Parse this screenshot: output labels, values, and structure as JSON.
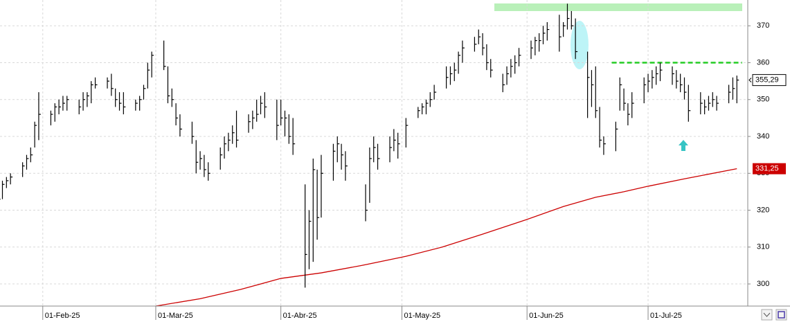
{
  "chart_data": {
    "type": "ohlc",
    "color": "#000000",
    "xlim": [
      0.4,
      185.7
    ],
    "ylim": [
      294,
      377
    ],
    "xticks": [
      {
        "value": 11,
        "label": "01-Feb-25"
      },
      {
        "value": 39,
        "label": "01-Mar-25"
      },
      {
        "value": 70,
        "label": "01-Abr-25"
      },
      {
        "value": 100,
        "label": "01-May-25"
      },
      {
        "value": 131,
        "label": "01-Jun-25"
      },
      {
        "value": 161,
        "label": "01-Jul-25"
      }
    ],
    "yticks": [
      300,
      310,
      320,
      330,
      340,
      350,
      360,
      370
    ],
    "grid": true,
    "x": [
      0,
      1,
      2,
      3,
      6,
      7,
      8,
      9,
      10,
      13,
      14,
      15,
      16,
      17,
      20,
      21,
      22,
      23,
      24,
      27,
      28,
      29,
      30,
      31,
      34,
      35,
      36,
      37,
      38,
      41,
      42,
      43,
      44,
      45,
      48,
      49,
      50,
      51,
      52,
      55,
      56,
      57,
      58,
      59,
      62,
      63,
      64,
      65,
      66,
      69,
      70,
      71,
      72,
      73,
      76,
      77,
      78,
      79,
      80,
      83,
      84,
      85,
      86,
      91,
      92,
      93,
      94,
      97,
      98,
      99,
      101,
      104,
      105,
      106,
      107,
      108,
      111,
      112,
      113,
      114,
      115,
      118,
      119,
      120,
      121,
      122,
      125,
      126,
      127,
      128,
      129,
      132,
      133,
      134,
      135,
      136,
      139,
      140,
      141,
      142,
      143,
      146,
      147,
      148,
      149,
      150,
      153,
      154,
      155,
      156,
      157,
      160,
      161,
      162,
      163,
      164,
      167,
      168,
      169,
      170,
      171,
      174,
      175,
      176,
      177,
      178,
      181,
      182,
      183
    ],
    "high": [
      325,
      328,
      329,
      330,
      333,
      335,
      337,
      344,
      352,
      347,
      349,
      350,
      351,
      351,
      350,
      352,
      352,
      355,
      356,
      356,
      357,
      353,
      352,
      352,
      350,
      351,
      354,
      360,
      363,
      366,
      359,
      353,
      349,
      346,
      344,
      339,
      336,
      335,
      333,
      337,
      340,
      341,
      343,
      347,
      346,
      347,
      350,
      351,
      352,
      350,
      350,
      347,
      346,
      345,
      327,
      320,
      334,
      331,
      335,
      338,
      340,
      338,
      336,
      327,
      337,
      340,
      338,
      340,
      342,
      341,
      345,
      348,
      349,
      350,
      352,
      354,
      359,
      359,
      360,
      363,
      366,
      367,
      369,
      368,
      365,
      361,
      357,
      359,
      361,
      362,
      364,
      366,
      367,
      368,
      370,
      371,
      373,
      371,
      376,
      374,
      372,
      363,
      358,
      359,
      348,
      340,
      344,
      356,
      353,
      349,
      352,
      356,
      357,
      358,
      359,
      360,
      359,
      358,
      357,
      356,
      354,
      352,
      350,
      351,
      352,
      351,
      354,
      356,
      356.5
    ],
    "low": [
      322,
      323,
      326,
      327,
      329,
      331,
      333,
      337,
      339,
      343,
      344,
      346,
      347,
      347,
      346,
      347,
      348,
      349,
      353,
      353,
      351,
      348,
      347,
      346,
      347,
      347,
      350,
      353,
      356,
      358,
      349,
      348,
      343,
      340,
      338,
      330,
      331,
      329,
      328,
      331,
      334,
      336,
      338,
      337,
      341,
      342,
      344,
      346,
      345,
      339,
      343,
      340,
      338,
      335,
      299,
      304,
      306,
      312,
      318,
      328,
      333,
      331,
      328,
      317,
      322,
      333,
      331,
      333,
      336,
      334,
      337,
      345,
      346,
      346,
      348,
      350,
      353,
      354,
      355,
      357,
      360,
      363,
      365,
      362,
      358,
      356,
      352,
      354,
      356,
      357,
      359,
      361,
      362,
      363,
      365,
      366,
      363,
      367,
      369,
      369,
      361,
      345,
      348,
      345,
      337,
      335,
      336,
      347,
      347,
      343,
      345,
      349,
      352,
      353,
      354,
      355,
      354,
      353,
      352,
      350,
      344,
      346,
      346,
      347,
      348,
      347,
      349,
      350,
      349
    ],
    "close": [
      323,
      327,
      328,
      329,
      332,
      334,
      335,
      343,
      346,
      346,
      348,
      348,
      349,
      350,
      348,
      350,
      351,
      354,
      354,
      355,
      353,
      350,
      349,
      348,
      349,
      350,
      353,
      358,
      362,
      359,
      351,
      350,
      345,
      342,
      340,
      333,
      334,
      331,
      330,
      335,
      338,
      339,
      341,
      339,
      344,
      345,
      346,
      349,
      348,
      343,
      345,
      345,
      340,
      338,
      308,
      317,
      331,
      318,
      330,
      336,
      338,
      335,
      332,
      320,
      334,
      337,
      334,
      337,
      339,
      338,
      343,
      347,
      348,
      349,
      350,
      352,
      356,
      357,
      358,
      362,
      364,
      365,
      367,
      364,
      360,
      358,
      354,
      357,
      359,
      360,
      362,
      364,
      366,
      366,
      368,
      369,
      367,
      370,
      372,
      370,
      363,
      356,
      354,
      347,
      339,
      338,
      342,
      354,
      349,
      346,
      349,
      354,
      355,
      356,
      357,
      358,
      357,
      355,
      354,
      352,
      347,
      349,
      348,
      349,
      350,
      349,
      352,
      353,
      355.29
    ],
    "last_price": {
      "value": 355.29,
      "label": "355,29"
    },
    "lines": [
      {
        "color": "#cc0000",
        "x": [
          39,
          50,
          60,
          70,
          80,
          90,
          101,
          110,
          120,
          131,
          140,
          148,
          155,
          161,
          170,
          183
        ],
        "values": [
          294,
          296,
          298.5,
          301.5,
          303,
          305,
          307.5,
          310,
          313.5,
          317.5,
          321,
          323.5,
          325,
          326.5,
          328.5,
          331.25
        ],
        "last": {
          "value": 331.25,
          "label": "331,25"
        }
      }
    ],
    "hline": {
      "value": 360,
      "x": [
        152,
        184.3
      ],
      "color": "#22cc22"
    }
  }
}
